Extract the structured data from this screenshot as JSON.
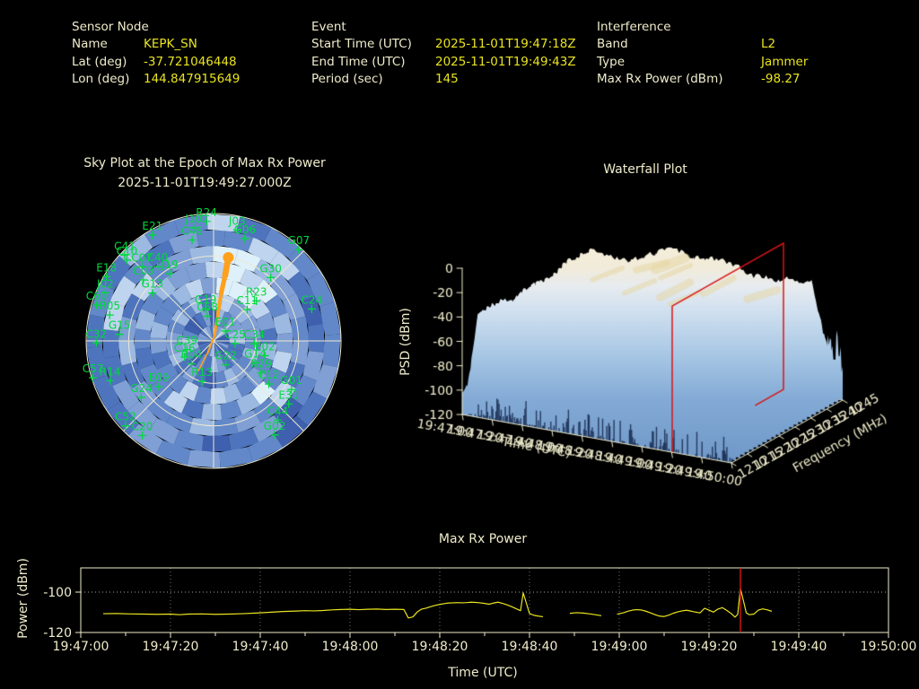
{
  "header": {
    "sensor_node": {
      "title": "Sensor Node",
      "rows": [
        {
          "label": "Name",
          "value": "KEPK_SN"
        },
        {
          "label": "Lat (deg)",
          "value": "-37.721046448"
        },
        {
          "label": "Lon (deg)",
          "value": "144.847915649"
        }
      ]
    },
    "event": {
      "title": "Event",
      "rows": [
        {
          "label": "Start Time (UTC)",
          "value": "2025-11-01T19:47:18Z"
        },
        {
          "label": "End Time (UTC)",
          "value": "2025-11-01T19:49:43Z"
        },
        {
          "label": "Period (sec)",
          "value": "145"
        }
      ]
    },
    "interference": {
      "title": "Interference",
      "rows": [
        {
          "label": "Band",
          "value": "L2"
        },
        {
          "label": "Type",
          "value": "Jammer"
        },
        {
          "label": "Max Rx Power (dBm)",
          "value": "-98.27"
        }
      ]
    }
  },
  "colors": {
    "label_cream": "#efeccb",
    "value_yellow": "#e9e41f",
    "satellite_green": "#00d93e",
    "jammer_orange": "#ffa11e",
    "event_red": "#d81414",
    "grid_gray": "#8a8a8a"
  },
  "chart_data": [
    {
      "type": "scatter",
      "projection": "polar_sky",
      "title": "Sky Plot at the Epoch of Max Rx Power",
      "subtitle": "2025-11-01T19:49:27.000Z",
      "grid": true,
      "rings": 3,
      "spokes_deg": 45,
      "background_palette": [
        "#2c3f93",
        "#35509f",
        "#3f60ae",
        "#4e74bd",
        "#6288c9",
        "#7f9fd5",
        "#9cb9e2",
        "#bfd4ee",
        "#def0fa"
      ],
      "satellites": [
        {
          "id": "R24",
          "az": 356.6,
          "r": 0.94
        },
        {
          "id": "E21",
          "az": 330,
          "r": 0.96
        },
        {
          "id": "J10",
          "az": 350,
          "r": 0.9
        },
        {
          "id": "C46",
          "az": 348,
          "r": 0.81
        },
        {
          "id": "C41",
          "az": 314,
          "r": 0.97
        },
        {
          "id": "C10",
          "az": 313,
          "r": 0.93
        },
        {
          "id": "E18",
          "az": 301,
          "r": 0.98
        },
        {
          "id": "C07",
          "az": 316,
          "r": 0.81
        },
        {
          "id": "C40",
          "az": 323,
          "r": 0.73
        },
        {
          "id": "C03",
          "az": 311,
          "r": 0.73
        },
        {
          "id": "J19",
          "az": 327,
          "r": 0.63
        },
        {
          "id": "G13",
          "az": 308,
          "r": 0.61
        },
        {
          "id": "J02",
          "az": 294,
          "r": 0.93
        },
        {
          "id": "C60",
          "az": 287,
          "r": 0.96
        },
        {
          "id": "R05",
          "az": 284,
          "r": 0.84
        },
        {
          "id": "G15",
          "az": 274,
          "r": 0.74
        },
        {
          "id": "C32",
          "az": 269,
          "r": 0.92
        },
        {
          "id": "C39",
          "az": 252,
          "r": 0.22
        },
        {
          "id": "C16",
          "az": 241,
          "r": 0.26
        },
        {
          "id": "R04",
          "az": 224,
          "r": 0.25
        },
        {
          "id": "C57",
          "az": 253,
          "r": 0.99
        },
        {
          "id": "R14",
          "az": 249,
          "r": 0.87
        },
        {
          "id": "R13",
          "az": 196,
          "r": 0.33
        },
        {
          "id": "E09",
          "az": 230,
          "r": 0.56
        },
        {
          "id": "G24",
          "az": 232,
          "r": 0.72
        },
        {
          "id": "C52",
          "az": 226,
          "r": 0.96
        },
        {
          "id": "C20",
          "az": 217,
          "r": 0.93
        },
        {
          "id": "J03",
          "az": 12,
          "r": 0.89
        },
        {
          "id": "G06",
          "az": 17,
          "r": 0.84
        },
        {
          "id": "G07",
          "az": 43,
          "r": 0.98
        },
        {
          "id": "G30",
          "az": 42,
          "r": 0.67
        },
        {
          "id": "R23",
          "az": 47,
          "r": 0.46
        },
        {
          "id": "C11",
          "az": 47,
          "r": 0.36
        },
        {
          "id": "C24",
          "az": 72,
          "r": 0.81
        },
        {
          "id": "E01",
          "az": 50,
          "r": 0.12
        },
        {
          "id": "C25",
          "az": 97,
          "r": 0.17
        },
        {
          "id": "C34",
          "az": 94,
          "r": 0.32
        },
        {
          "id": "E02",
          "az": 106,
          "r": 0.42
        },
        {
          "id": "G22",
          "az": 153,
          "r": 0.21
        },
        {
          "id": "G14",
          "az": 118,
          "r": 0.37
        },
        {
          "id": "R29",
          "az": 124,
          "r": 0.45
        },
        {
          "id": "C12",
          "az": 128,
          "r": 0.55
        },
        {
          "id": "G01",
          "az": 122,
          "r": 0.72
        },
        {
          "id": "E31",
          "az": 130,
          "r": 0.77
        },
        {
          "id": "C44",
          "az": 141,
          "r": 0.8
        },
        {
          "id": "G02",
          "az": 147,
          "r": 0.88
        },
        {
          "id": "G19",
          "az": 346,
          "r": 0.26
        },
        {
          "id": "C58",
          "az": 346,
          "r": 0.2
        }
      ],
      "jammer_track": {
        "color": "#ffa11e",
        "points_az_r_w": [
          [
            207,
            0.26,
            1.5
          ],
          [
            207,
            0.1,
            1.5
          ],
          [
            10,
            0.04,
            2.5
          ],
          [
            9,
            0.22,
            3.5
          ],
          [
            9,
            0.38,
            4.5
          ],
          [
            10,
            0.52,
            6
          ],
          [
            10,
            0.645,
            7.5
          ]
        ],
        "blob": {
          "az": 10,
          "r": 0.665,
          "radius_px": 6
        }
      }
    },
    {
      "type": "surface3d",
      "title": "Waterfall Plot",
      "xlabel": "Time (UTC)",
      "ylabel": "Frequency (MHz)",
      "zlabel": "PSD (dBm)",
      "time_ticks": [
        "19:47:00",
        "19:47:20",
        "19:47:40",
        "19:48:00",
        "19:48:20",
        "19:48:40",
        "19:49:00",
        "19:49:20",
        "19:49:40",
        "19:50:00"
      ],
      "freq_ticks": [
        1210,
        1215,
        1220,
        1225,
        1230,
        1235,
        1240,
        1245
      ],
      "psd_ticks": [
        0,
        -20,
        -40,
        -60,
        -80,
        -100,
        -120
      ],
      "zlim": [
        -120,
        0
      ],
      "freq_range_mhz": [
        1210,
        1245
      ],
      "plateau_psd_dbm": -26,
      "noise_floor_dbm": -112,
      "event_marker": {
        "time": "19:49:27",
        "color": "#d81414"
      }
    },
    {
      "type": "line",
      "title": "Max Rx Power",
      "xlabel": "Time (UTC)",
      "ylabel": "Power (dBm)",
      "x_ticks": [
        "19:47:00",
        "19:47:20",
        "19:47:40",
        "19:48:00",
        "19:48:20",
        "19:48:40",
        "19:49:00",
        "19:49:20",
        "19:49:40",
        "19:50:00"
      ],
      "x_range_sec": [
        0,
        180
      ],
      "y_ticks": [
        -100,
        -120
      ],
      "ylim": [
        -88,
        -120
      ],
      "grid": true,
      "line_color": "#e9e41f",
      "marker_time_sec": 147,
      "marker_color": "#d81414",
      "series": [
        {
          "name": "Max Rx Power",
          "points": [
            [
              5,
              -110.7
            ],
            [
              8,
              -110.6
            ],
            [
              11,
              -110.8
            ],
            [
              14,
              -110.9
            ],
            [
              17,
              -111.0
            ],
            [
              20,
              -110.9
            ],
            [
              22,
              -111.2
            ],
            [
              24,
              -110.9
            ],
            [
              27,
              -110.8
            ],
            [
              30,
              -111.0
            ],
            [
              33,
              -110.9
            ],
            [
              36,
              -110.7
            ],
            [
              39,
              -110.4
            ],
            [
              42,
              -110.0
            ],
            [
              45,
              -109.6
            ],
            [
              48,
              -109.4
            ],
            [
              50,
              -109.2
            ],
            [
              52,
              -109.3
            ],
            [
              54,
              -109.1
            ],
            [
              56,
              -108.8
            ],
            [
              58,
              -108.6
            ],
            [
              60,
              -108.5
            ],
            [
              62,
              -108.7
            ],
            [
              64,
              -108.5
            ],
            [
              66,
              -108.4
            ],
            [
              68,
              -108.6
            ],
            [
              70,
              -108.5
            ],
            [
              72,
              -108.6
            ],
            [
              73,
              -112.8
            ],
            [
              74,
              -112.3
            ],
            [
              75,
              -109.8
            ],
            [
              76,
              -108.4
            ],
            [
              77,
              -107.9
            ],
            [
              78,
              -107.2
            ],
            [
              79,
              -106.6
            ],
            [
              80,
              -106.1
            ],
            [
              81,
              -105.7
            ],
            [
              82,
              -105.4
            ],
            [
              83,
              -105.3
            ],
            [
              84,
              -105.2
            ],
            [
              85,
              -105.3
            ],
            [
              86,
              -105.2
            ],
            [
              87,
              -105.0
            ],
            [
              88,
              -105.1
            ],
            [
              89,
              -105.3
            ],
            [
              90,
              -105.6
            ],
            [
              91,
              -106.0
            ],
            [
              92,
              -105.4
            ],
            [
              93,
              -105.0
            ],
            [
              94,
              -105.6
            ],
            [
              95,
              -106.3
            ],
            [
              96,
              -107.2
            ],
            [
              97,
              -108.2
            ],
            [
              98,
              -109.2
            ],
            [
              98.6,
              -100.4
            ],
            [
              99.3,
              -105.5
            ],
            [
              100,
              -110.6
            ],
            [
              101,
              -111.5
            ],
            [
              102,
              -111.9
            ],
            [
              103,
              -112.2
            ],
            [
              104.5,
              null
            ],
            [
              109,
              -110.5
            ],
            [
              110.5,
              -110.2
            ],
            [
              112,
              -110.4
            ],
            [
              113.5,
              -110.8
            ],
            [
              115,
              -111.3
            ],
            [
              116,
              -111.7
            ],
            [
              117.5,
              null
            ],
            [
              119.5,
              -110.9
            ],
            [
              121,
              -110.2
            ],
            [
              122,
              -109.4
            ],
            [
              123,
              -108.9
            ],
            [
              124,
              -108.7
            ],
            [
              125,
              -108.9
            ],
            [
              126,
              -109.5
            ],
            [
              127,
              -110.3
            ],
            [
              128,
              -111.2
            ],
            [
              129,
              -111.9
            ],
            [
              130,
              -112.1
            ],
            [
              131,
              -111.4
            ],
            [
              132,
              -110.5
            ],
            [
              133,
              -109.8
            ],
            [
              134,
              -109.3
            ],
            [
              135,
              -109.0
            ],
            [
              136,
              -109.4
            ],
            [
              137,
              -109.9
            ],
            [
              138,
              -110.3
            ],
            [
              139,
              -108.0
            ],
            [
              140,
              -108.9
            ],
            [
              141,
              -109.9
            ],
            [
              142,
              -108.4
            ],
            [
              143,
              -107.7
            ],
            [
              144,
              -109.1
            ],
            [
              145,
              -110.7
            ],
            [
              145.8,
              -112.4
            ],
            [
              146.4,
              -111.0
            ],
            [
              147,
              -98.3
            ],
            [
              147.7,
              -104.5
            ],
            [
              148.3,
              -110.2
            ],
            [
              149,
              -111.2
            ],
            [
              150,
              -110.9
            ],
            [
              151,
              -108.9
            ],
            [
              152,
              -108.3
            ],
            [
              153,
              -108.8
            ],
            [
              154,
              -109.5
            ]
          ]
        }
      ]
    }
  ]
}
